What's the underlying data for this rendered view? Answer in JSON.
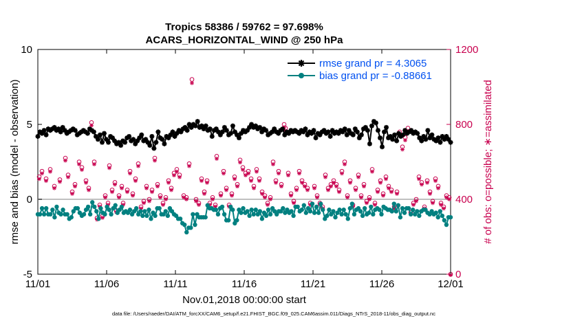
{
  "chart_data": {
    "type": "line",
    "title": "Tropics 58386 / 59762 = 97.698%",
    "subtitle": "ACARS_HORIZONTAL_WIND @ 250 hPa",
    "xlabel": "Nov.01,2018 00:00:00 start",
    "ylabel": "rmse and bias (model - observation)",
    "ylabel_right": "# of obs: o=possible; ∗=assimilated",
    "footer": "data file: /Users/raeder/DAI/ATM_forcXX/CAM6_setup/f.e21.FHIST_BGC.f09_025.CAM6assim.011/Diags_NTrS_2018-11/obs_diag_output.nc",
    "xlim": [
      0,
      30
    ],
    "ylim": [
      -5,
      10
    ],
    "ylim_right": [
      0,
      1200
    ],
    "x_ticks": [
      0,
      5,
      10,
      15,
      20,
      25,
      30
    ],
    "x_tick_labels": [
      "11/01",
      "11/06",
      "11/11",
      "11/16",
      "11/21",
      "11/26",
      "12/01"
    ],
    "y_ticks": [
      -5,
      0,
      5,
      10
    ],
    "y_tick_labels": [
      "-5",
      "0",
      "5",
      "10"
    ],
    "y_ticks_right": [
      0,
      400,
      800,
      1200
    ],
    "y_tick_labels_right": [
      "0",
      "400",
      "800",
      "1200"
    ],
    "legend_position": "top-right",
    "colors": {
      "rmse": "#000000",
      "bias": "#008080",
      "obs": "#c8004e",
      "zero_line": "#c0c0c0",
      "legend_text": "#0050f0"
    },
    "series": [
      {
        "name": "rmse grand pr = 4.3065",
        "values": [
          4.2,
          4.5,
          4.4,
          4.6,
          4.3,
          4.7,
          4.6,
          4.7,
          4.8,
          4.6,
          4.7,
          4.5,
          4.8,
          4.6,
          4.4,
          4.5,
          4.6,
          4.7,
          4.6,
          4.3,
          4.4,
          4.5,
          4.6,
          4.5,
          4.4,
          4.7,
          4.6,
          4.5,
          4.2,
          4.0,
          4.3,
          3.8,
          4.4,
          4.0,
          3.8,
          4.2,
          4.1,
          3.9,
          3.7,
          3.8,
          3.6,
          3.9,
          3.8,
          4.1,
          4.2,
          3.9,
          4.0,
          3.7,
          3.9,
          4.1,
          4.3,
          3.9,
          4.0,
          3.8,
          3.6,
          4.2,
          3.4,
          3.8,
          4.5,
          4.1,
          4.0,
          3.7,
          4.2,
          4.1,
          4.3,
          4.5,
          4.2,
          4.4,
          4.6,
          4.5,
          4.7,
          4.8,
          4.6,
          5.0,
          4.8,
          5.0,
          4.9,
          5.2,
          4.8,
          4.9,
          4.7,
          4.9,
          4.6,
          4.7,
          4.2,
          4.6,
          4.7,
          4.5,
          4.3,
          4.5,
          4.8,
          4.6,
          4.3,
          4.4,
          4.9,
          4.5,
          4.3,
          4.1,
          4.4,
          4.6,
          4.5,
          4.6,
          4.8,
          5.0,
          4.8,
          4.9,
          4.7,
          4.8,
          4.5,
          4.7,
          4.6,
          4.3,
          4.4,
          4.5,
          4.7,
          4.5,
          4.4,
          4.6,
          4.7,
          4.3,
          4.5,
          4.4,
          4.6,
          4.5,
          4.6,
          4.5,
          4.4,
          4.6,
          4.5,
          4.7,
          4.3,
          4.5,
          4.4,
          4.6,
          4.1,
          4.4,
          4.3,
          4.5,
          4.6,
          4.4,
          4.5,
          4.2,
          4.6,
          4.4,
          4.5,
          4.4,
          4.6,
          4.5,
          4.7,
          4.3,
          4.6,
          4.4,
          4.3,
          4.7,
          4.5,
          4.1,
          4.3,
          4.7,
          4.8,
          4.6,
          3.7,
          4.9,
          5.2,
          5.1,
          4.6,
          4.1,
          3.5,
          4.5,
          4.8,
          4.1,
          4.2,
          4.0,
          4.3,
          3.9,
          4.4,
          4.2,
          4.3,
          4.6,
          4.4,
          4.5,
          4.6,
          4.4,
          4.5,
          4.4,
          4.1,
          3.9,
          4.2,
          4.0,
          4.6,
          4.1,
          4.3,
          4.0,
          3.9,
          4.1,
          3.8,
          4.2,
          4.0,
          4.2,
          4.0,
          3.8
        ]
      },
      {
        "name": "bias grand pr = -0.88661",
        "values": [
          -1.0,
          -1.0,
          -0.6,
          -1.0,
          -0.6,
          -1.0,
          -1.0,
          -0.7,
          -1.2,
          -0.5,
          -0.9,
          -1.0,
          -0.7,
          -1.0,
          -1.0,
          -1.3,
          -1.2,
          -0.8,
          -0.6,
          -0.6,
          -0.9,
          -1.1,
          -1.0,
          -0.7,
          -0.5,
          -1.0,
          -0.2,
          -0.5,
          -0.8,
          -1.3,
          -0.6,
          -0.9,
          -1.0,
          -0.5,
          -0.7,
          -1.0,
          -0.6,
          -0.4,
          -0.9,
          -0.7,
          -0.5,
          -0.9,
          -0.8,
          -0.9,
          -0.7,
          -1.0,
          -0.8,
          -0.6,
          -1.0,
          -0.8,
          -1.1,
          -0.8,
          -1.1,
          -0.7,
          -1.3,
          -0.9,
          -1.1,
          -0.6,
          -0.6,
          -1.0,
          -1.0,
          -0.8,
          -1.1,
          -0.6,
          -0.8,
          -1.0,
          -1.1,
          -1.3,
          -1.3,
          -1.6,
          -1.7,
          -2.2,
          -1.9,
          -1.9,
          -1.0,
          -1.7,
          -1.0,
          -1.2,
          -1.2,
          -1.2,
          -1.2,
          -0.4,
          -0.6,
          -0.6,
          -0.7,
          -0.7,
          -1.0,
          -0.6,
          -0.5,
          -1.0,
          -1.4,
          -1.4,
          -0.5,
          -0.7,
          -1.6,
          -1.4,
          -0.7,
          -0.9,
          -0.6,
          -0.9,
          -0.8,
          -1.1,
          -0.7,
          -1.0,
          -0.7,
          -1.0,
          -0.8,
          -1.3,
          -0.9,
          -1.1,
          -0.7,
          -1.0,
          -0.6,
          -0.8,
          -1.0,
          -0.8,
          -0.8,
          -0.6,
          -0.9,
          -0.7,
          -0.9,
          -0.8,
          -1.1,
          -0.5,
          -0.5,
          -0.8,
          -0.7,
          -0.4,
          -0.9,
          -0.6,
          -0.8,
          -0.3,
          -0.9,
          -0.5,
          -0.9,
          -0.3,
          -0.7,
          -1.3,
          -1.1,
          -0.7,
          -1.0,
          -0.8,
          -1.2,
          -0.9,
          -0.7,
          -1.0,
          -0.7,
          -1.0,
          -1.3,
          -0.6,
          -0.3,
          -1.0,
          -0.7,
          -0.6,
          -0.8,
          -1.1,
          -0.6,
          -1.0,
          -0.9,
          -0.5,
          -1.0,
          -0.7,
          -0.6,
          -0.7,
          -1.0,
          -0.5,
          -0.6,
          -0.7,
          -0.7,
          -0.8,
          -0.3,
          -0.8,
          -0.4,
          -1.2,
          -0.6,
          -0.9,
          -0.6,
          -0.6,
          -1.0,
          -0.7,
          -1.0,
          -0.8,
          -1.1,
          -0.8,
          -0.7,
          -0.7,
          -0.9,
          -1.0,
          -0.8,
          -1.0,
          -0.9,
          -1.2,
          -0.8,
          -1.1,
          -1.4,
          -1.7,
          -1.2,
          -1.2
        ]
      }
    ],
    "obs_count_points": [
      {
        "x": 0.1,
        "y": 520
      },
      {
        "x": 0.3,
        "y": 550
      },
      {
        "x": 0.6,
        "y": 510
      },
      {
        "x": 0.9,
        "y": 560
      },
      {
        "x": 1.2,
        "y": 470
      },
      {
        "x": 1.6,
        "y": 505
      },
      {
        "x": 2.0,
        "y": 620
      },
      {
        "x": 2.2,
        "y": 530
      },
      {
        "x": 2.5,
        "y": 440
      },
      {
        "x": 2.7,
        "y": 480
      },
      {
        "x": 3.0,
        "y": 600
      },
      {
        "x": 3.2,
        "y": 570
      },
      {
        "x": 3.5,
        "y": 500
      },
      {
        "x": 3.7,
        "y": 460
      },
      {
        "x": 3.9,
        "y": 810
      },
      {
        "x": 4.1,
        "y": 600
      },
      {
        "x": 4.3,
        "y": 300
      },
      {
        "x": 4.5,
        "y": 370
      },
      {
        "x": 4.7,
        "y": 310
      },
      {
        "x": 4.9,
        "y": 420
      },
      {
        "x": 5.1,
        "y": 380
      },
      {
        "x": 5.2,
        "y": 580
      },
      {
        "x": 5.4,
        "y": 450
      },
      {
        "x": 5.6,
        "y": 490
      },
      {
        "x": 5.7,
        "y": 340
      },
      {
        "x": 5.9,
        "y": 420
      },
      {
        "x": 6.1,
        "y": 470
      },
      {
        "x": 6.2,
        "y": 380
      },
      {
        "x": 6.5,
        "y": 450
      },
      {
        "x": 6.7,
        "y": 550
      },
      {
        "x": 6.9,
        "y": 430
      },
      {
        "x": 7.1,
        "y": 510
      },
      {
        "x": 7.3,
        "y": 590
      },
      {
        "x": 7.5,
        "y": 360
      },
      {
        "x": 7.7,
        "y": 390
      },
      {
        "x": 7.9,
        "y": 470
      },
      {
        "x": 8.1,
        "y": 400
      },
      {
        "x": 8.3,
        "y": 450
      },
      {
        "x": 8.5,
        "y": 620
      },
      {
        "x": 8.7,
        "y": 480
      },
      {
        "x": 8.9,
        "y": 420
      },
      {
        "x": 9.1,
        "y": 380
      },
      {
        "x": 9.3,
        "y": 410
      },
      {
        "x": 9.5,
        "y": 500
      },
      {
        "x": 9.7,
        "y": 460
      },
      {
        "x": 9.9,
        "y": 540
      },
      {
        "x": 10.1,
        "y": 560
      },
      {
        "x": 10.3,
        "y": 530
      },
      {
        "x": 10.6,
        "y": 420
      },
      {
        "x": 10.8,
        "y": 410
      },
      {
        "x": 11.0,
        "y": 590
      },
      {
        "x": 11.2,
        "y": 1040
      },
      {
        "x": 11.5,
        "y": 400
      },
      {
        "x": 11.7,
        "y": 380
      },
      {
        "x": 11.9,
        "y": 510
      },
      {
        "x": 12.1,
        "y": 440
      },
      {
        "x": 12.3,
        "y": 500
      },
      {
        "x": 12.5,
        "y": 380
      },
      {
        "x": 12.7,
        "y": 410
      },
      {
        "x": 12.9,
        "y": 370
      },
      {
        "x": 13.0,
        "y": 630
      },
      {
        "x": 13.3,
        "y": 430
      },
      {
        "x": 13.5,
        "y": 550
      },
      {
        "x": 13.7,
        "y": 460
      },
      {
        "x": 13.9,
        "y": 370
      },
      {
        "x": 14.1,
        "y": 430
      },
      {
        "x": 14.3,
        "y": 520
      },
      {
        "x": 14.5,
        "y": 480
      },
      {
        "x": 14.7,
        "y": 610
      },
      {
        "x": 14.9,
        "y": 570
      },
      {
        "x": 15.1,
        "y": 540
      },
      {
        "x": 15.3,
        "y": 550
      },
      {
        "x": 15.5,
        "y": 510
      },
      {
        "x": 15.7,
        "y": 470
      },
      {
        "x": 15.9,
        "y": 560
      },
      {
        "x": 16.1,
        "y": 510
      },
      {
        "x": 16.3,
        "y": 440
      },
      {
        "x": 16.5,
        "y": 420
      },
      {
        "x": 16.7,
        "y": 380
      },
      {
        "x": 16.9,
        "y": 410
      },
      {
        "x": 17.1,
        "y": 600
      },
      {
        "x": 17.3,
        "y": 500
      },
      {
        "x": 17.5,
        "y": 550
      },
      {
        "x": 17.7,
        "y": 480
      },
      {
        "x": 17.9,
        "y": 800
      },
      {
        "x": 18.0,
        "y": 780
      },
      {
        "x": 18.2,
        "y": 540
      },
      {
        "x": 18.4,
        "y": 430
      },
      {
        "x": 18.6,
        "y": 390
      },
      {
        "x": 18.8,
        "y": 460
      },
      {
        "x": 19.0,
        "y": 550
      },
      {
        "x": 19.2,
        "y": 500
      },
      {
        "x": 19.4,
        "y": 480
      },
      {
        "x": 19.6,
        "y": 460
      },
      {
        "x": 19.8,
        "y": 380
      },
      {
        "x": 20.1,
        "y": 470
      },
      {
        "x": 20.3,
        "y": 420
      },
      {
        "x": 20.5,
        "y": 380
      },
      {
        "x": 20.7,
        "y": 360
      },
      {
        "x": 20.9,
        "y": 530
      },
      {
        "x": 21.1,
        "y": 460
      },
      {
        "x": 21.3,
        "y": 480
      },
      {
        "x": 21.5,
        "y": 500
      },
      {
        "x": 21.7,
        "y": 480
      },
      {
        "x": 21.9,
        "y": 450
      },
      {
        "x": 22.1,
        "y": 550
      },
      {
        "x": 22.3,
        "y": 600
      },
      {
        "x": 22.5,
        "y": 420
      },
      {
        "x": 22.7,
        "y": 500
      },
      {
        "x": 22.9,
        "y": 370
      },
      {
        "x": 23.1,
        "y": 460
      },
      {
        "x": 23.3,
        "y": 530
      },
      {
        "x": 23.5,
        "y": 420
      },
      {
        "x": 23.7,
        "y": 480
      },
      {
        "x": 23.9,
        "y": 390
      },
      {
        "x": 24.1,
        "y": 410
      },
      {
        "x": 24.3,
        "y": 560
      },
      {
        "x": 24.5,
        "y": 380
      },
      {
        "x": 24.7,
        "y": 450
      },
      {
        "x": 24.9,
        "y": 500
      },
      {
        "x": 25.1,
        "y": 430
      },
      {
        "x": 25.3,
        "y": 520
      },
      {
        "x": 25.5,
        "y": 470
      },
      {
        "x": 25.7,
        "y": 450
      },
      {
        "x": 25.9,
        "y": 360
      },
      {
        "x": 26.1,
        "y": 440
      },
      {
        "x": 26.3,
        "y": 760
      },
      {
        "x": 26.5,
        "y": 680
      },
      {
        "x": 26.7,
        "y": 730
      },
      {
        "x": 26.9,
        "y": 780
      },
      {
        "x": 27.1,
        "y": 330
      },
      {
        "x": 27.3,
        "y": 380
      },
      {
        "x": 27.5,
        "y": 400
      },
      {
        "x": 27.7,
        "y": 520
      },
      {
        "x": 27.9,
        "y": 490
      },
      {
        "x": 28.1,
        "y": 360
      },
      {
        "x": 28.3,
        "y": 500
      },
      {
        "x": 28.5,
        "y": 440
      },
      {
        "x": 28.7,
        "y": 390
      },
      {
        "x": 28.9,
        "y": 510
      },
      {
        "x": 29.1,
        "y": 470
      },
      {
        "x": 29.3,
        "y": 380
      },
      {
        "x": 29.5,
        "y": 360
      },
      {
        "x": 29.7,
        "y": 420
      },
      {
        "x": 29.9,
        "y": 410
      },
      {
        "x": 30.0,
        "y": 0
      }
    ]
  }
}
